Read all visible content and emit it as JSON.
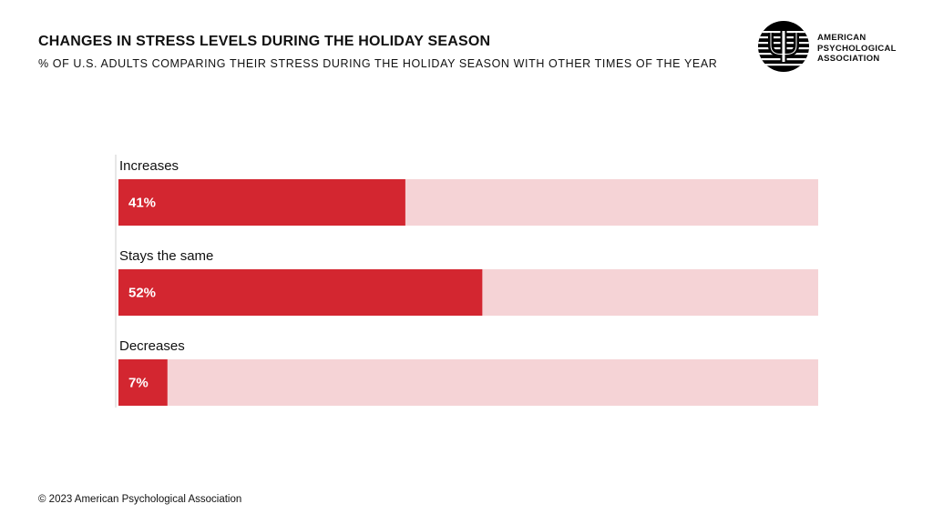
{
  "header": {
    "title": "CHANGES IN STRESS LEVELS DURING THE HOLIDAY SEASON",
    "subtitle": "% OF U.S. ADULTS COMPARING THEIR STRESS DURING THE HOLIDAY SEASON WITH OTHER TIMES OF THE YEAR"
  },
  "logo": {
    "icon": "apa-psi-logo-icon",
    "text": "AMERICAN PSYCHOLOGICAL ASSOCIATION"
  },
  "colors": {
    "bar": "#d32630",
    "track": "#f5d3d6",
    "bar_label": "#ffffff",
    "axis": "#cfcfcf"
  },
  "chart_data": {
    "type": "bar",
    "orientation": "horizontal",
    "categories": [
      "Increases",
      "Stays the same",
      "Decreases"
    ],
    "values": [
      41,
      52,
      7
    ],
    "value_labels": [
      "41%",
      "52%",
      "7%"
    ],
    "xlim": [
      0,
      100
    ],
    "grid": false,
    "legend": "none"
  },
  "footer": {
    "copyright": "© 2023 American Psychological Association"
  }
}
